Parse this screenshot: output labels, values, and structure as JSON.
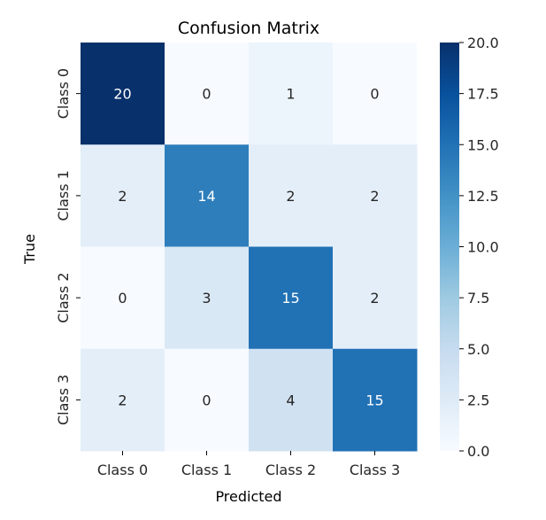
{
  "chart_data": {
    "type": "heatmap",
    "title": "Confusion Matrix",
    "xlabel": "Predicted",
    "ylabel": "True",
    "x_categories": [
      "Class 0",
      "Class 1",
      "Class 2",
      "Class 3"
    ],
    "y_categories": [
      "Class 0",
      "Class 1",
      "Class 2",
      "Class 3"
    ],
    "values": [
      [
        20,
        0,
        1,
        0
      ],
      [
        2,
        14,
        2,
        2
      ],
      [
        0,
        3,
        15,
        2
      ],
      [
        2,
        0,
        4,
        15
      ]
    ],
    "colormap": "Blues",
    "vmin": 0,
    "vmax": 20,
    "colorbar_ticks": [
      "0.0",
      "2.5",
      "5.0",
      "7.5",
      "10.0",
      "12.5",
      "15.0",
      "17.5",
      "20.0"
    ],
    "annotation_color_light": "#ffffff",
    "annotation_color_dark": "#262626"
  }
}
